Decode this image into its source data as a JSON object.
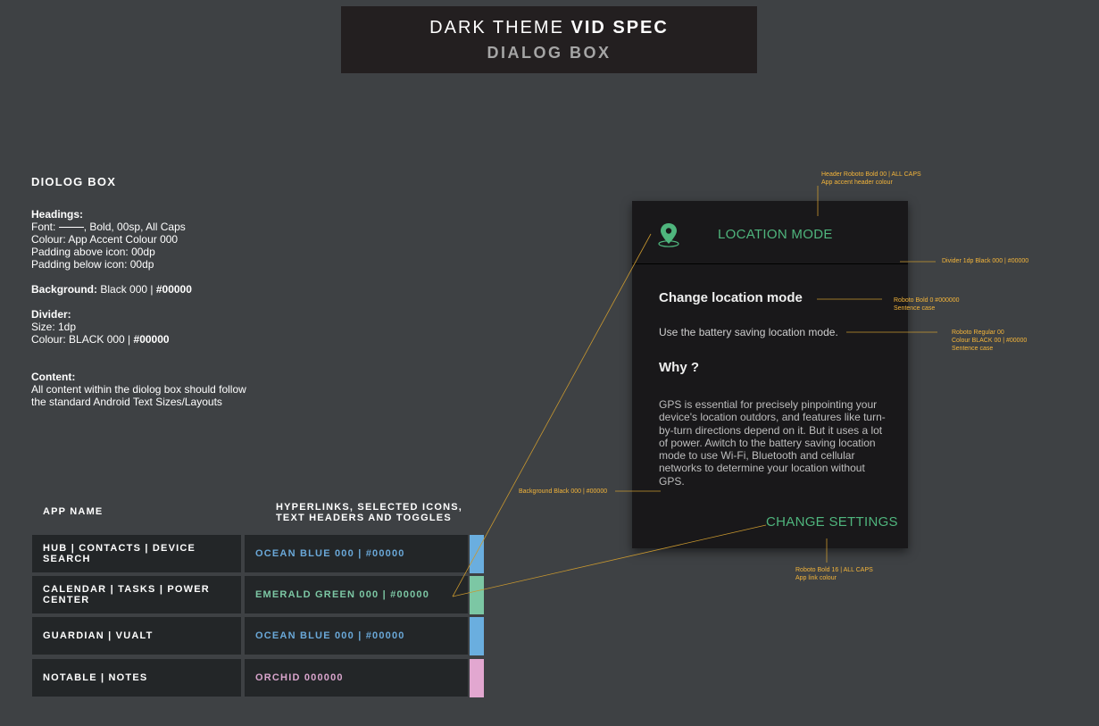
{
  "banner": {
    "title_light": "DARK THEME ",
    "title_bold": "VID SPEC",
    "subtitle": "DIALOG BOX"
  },
  "spec": {
    "heading": "DIOLOG BOX",
    "headings_label": "Headings:",
    "font_prefix": "Font: ",
    "font_suffix": ", Bold, 00sp, All Caps",
    "colour_line": "Colour: App Accent Colour 000",
    "padding_above": "Padding above icon: 00dp",
    "padding_below": "Padding below icon: 00dp",
    "background_label": "Background:",
    "background_value": " Black 000 | ",
    "background_hex": "#00000",
    "divider_label": "Divider:",
    "divider_size": "Size: 1dp",
    "divider_colour": "Colour: BLACK 000 | ",
    "divider_hex": "#00000",
    "content_label": "Content:",
    "content_line1": "All content within the diolog box should follow",
    "content_line2": "the standard Android Text Sizes/Layouts"
  },
  "table": {
    "col1_header": "APP NAME",
    "col2_header_line1": "HYPERLINKS, SELECTED ICONS,",
    "col2_header_line2": "TEXT HEADERS AND TOGGLES",
    "rows": [
      {
        "app": "HUB | CONTACTS | DEVICE SEARCH",
        "colour": "OCEAN BLUE 000 | #00000",
        "text_color": "#6aa8d8",
        "swatch": "#6aaedf"
      },
      {
        "app": "CALENDAR | TASKS | POWER CENTER",
        "colour": "EMERALD GREEN 000 | #00000",
        "text_color": "#7cc7a4",
        "swatch": "#7cc7a4"
      },
      {
        "app": "GUARDIAN | VUALT",
        "colour": "OCEAN BLUE 000 | #00000",
        "text_color": "#6aa8d8",
        "swatch": "#6aaedf"
      },
      {
        "app": "NOTABLE | NOTES",
        "colour": "ORCHID 000000",
        "text_color": "#d8a4cc",
        "swatch": "#e2a7d0"
      }
    ]
  },
  "dialog": {
    "icon": "location-pin-icon",
    "header_title": "LOCATION MODE",
    "title": "Change location mode",
    "subtitle": "Use the battery saving location mode.",
    "why": "Why ?",
    "body": "GPS is essential for precisely pinpointing your device's location outdors, and features like turn-by-turn directions depend on it. But it uses a lot of power. Awitch to the battery saving location mode to use Wi-Fi, Bluetooth and cellular networks to determine your location without GPS.",
    "action": "CHANGE SETTINGS",
    "accent_color": "#4fb57d",
    "background_color": "#19181a"
  },
  "annotations": {
    "header_line1": "Header Roboto Bold 00 | ALL CAPS",
    "header_line2": "App accent header colour",
    "divider": "Divider 1dp Black 000 | #00000",
    "title_line1": "Roboto Bold 0 #000000",
    "title_line2": "Sentence case",
    "subtitle_line1": "Roboto Regular 00",
    "subtitle_line2": "Colour BLACK 00 | #00000",
    "subtitle_line3": "Sentence case",
    "background": "Background Black 000 | #00000",
    "action_line1": "Roboto Bold 16 | ALL CAPS",
    "action_line2": "App link colour"
  }
}
